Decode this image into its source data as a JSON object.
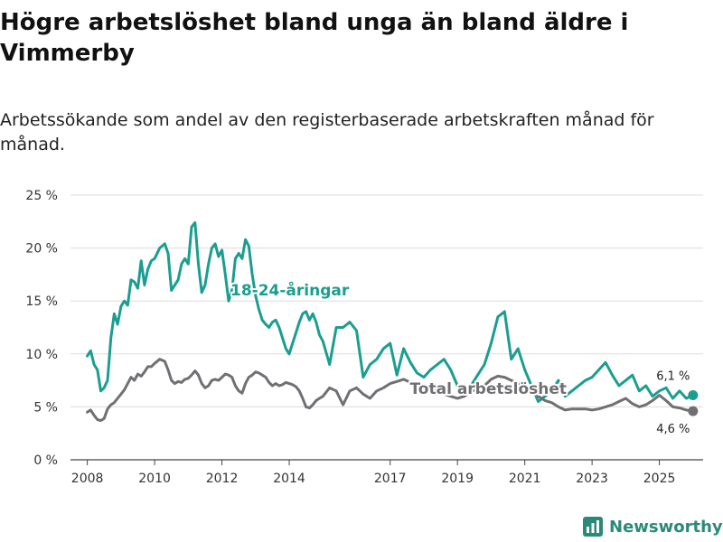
{
  "chart_data": {
    "type": "line",
    "title": "Högre arbetslöshet bland unga än bland äldre i Vimmerby",
    "subtitle": "Arbetssökande som andel av den registerbaserade arbetskraften månad för månad.",
    "ylim": [
      0,
      25
    ],
    "xlim": [
      2007.5,
      2026.3
    ],
    "y_ticks": [
      0,
      5,
      10,
      15,
      20,
      25
    ],
    "y_tick_labels": [
      "0 %",
      "5 %",
      "10 %",
      "15 %",
      "20 %",
      "25 %"
    ],
    "x_ticks": [
      2008,
      2010,
      2012,
      2014,
      2017,
      2019,
      2021,
      2023,
      2025
    ],
    "x_tick_labels": [
      "2008",
      "2010",
      "2012",
      "2014",
      "2017",
      "2019",
      "2021",
      "2023",
      "2025"
    ],
    "grid": "horizontal",
    "series": [
      {
        "name": "18-24-åringar",
        "label": "18-24-åringar",
        "color": "#1a9e8f",
        "end_label": "6,1 %",
        "x": [
          2008.0,
          2008.1,
          2008.2,
          2008.3,
          2008.4,
          2008.5,
          2008.6,
          2008.7,
          2008.8,
          2008.9,
          2009.0,
          2009.1,
          2009.2,
          2009.3,
          2009.4,
          2009.5,
          2009.6,
          2009.7,
          2009.8,
          2009.9,
          2010.0,
          2010.15,
          2010.3,
          2010.4,
          2010.5,
          2010.6,
          2010.7,
          2010.8,
          2010.9,
          2011.0,
          2011.1,
          2011.2,
          2011.3,
          2011.4,
          2011.5,
          2011.6,
          2011.7,
          2011.8,
          2011.9,
          2012.0,
          2012.1,
          2012.2,
          2012.3,
          2012.4,
          2012.5,
          2012.6,
          2012.7,
          2012.8,
          2012.9,
          2013.0,
          2013.1,
          2013.2,
          2013.3,
          2013.4,
          2013.5,
          2013.6,
          2013.7,
          2013.8,
          2013.9,
          2014.0,
          2014.1,
          2014.2,
          2014.3,
          2014.4,
          2014.5,
          2014.6,
          2014.7,
          2014.8,
          2014.9,
          2015.0,
          2015.2,
          2015.4,
          2015.6,
          2015.8,
          2016.0,
          2016.2,
          2016.4,
          2016.6,
          2016.8,
          2017.0,
          2017.2,
          2017.4,
          2017.6,
          2017.8,
          2018.0,
          2018.2,
          2018.4,
          2018.6,
          2018.8,
          2019.0,
          2019.2,
          2019.4,
          2019.6,
          2019.8,
          2020.0,
          2020.2,
          2020.4,
          2020.6,
          2020.8,
          2021.0,
          2021.2,
          2021.4,
          2021.6,
          2021.8,
          2022.0,
          2022.2,
          2022.4,
          2022.6,
          2022.8,
          2023.0,
          2023.2,
          2023.4,
          2023.6,
          2023.8,
          2024.0,
          2024.2,
          2024.4,
          2024.6,
          2024.8,
          2025.0,
          2025.2,
          2025.4,
          2025.6,
          2025.8,
          2026.0
        ],
        "values": [
          9.8,
          10.3,
          9.0,
          8.5,
          6.5,
          6.8,
          7.5,
          11.5,
          13.8,
          12.8,
          14.5,
          15.0,
          14.6,
          17.0,
          16.8,
          16.2,
          18.8,
          16.5,
          18.0,
          18.8,
          19.0,
          20.0,
          20.4,
          19.5,
          16.0,
          16.5,
          17.0,
          18.5,
          19.0,
          18.5,
          22.0,
          22.4,
          18.5,
          15.8,
          16.5,
          18.5,
          20.0,
          20.4,
          19.2,
          19.8,
          17.5,
          15.0,
          16.0,
          19.0,
          19.5,
          19.0,
          20.8,
          20.2,
          17.5,
          15.5,
          14.2,
          13.2,
          12.8,
          12.5,
          13.0,
          13.2,
          12.5,
          11.5,
          10.5,
          10.0,
          11.0,
          12.0,
          13.0,
          13.8,
          14.0,
          13.2,
          13.8,
          13.0,
          11.8,
          11.2,
          9.0,
          12.5,
          12.5,
          13.0,
          12.2,
          7.8,
          9.0,
          9.5,
          10.5,
          11.0,
          8.0,
          10.5,
          9.2,
          8.2,
          7.8,
          8.5,
          9.0,
          9.5,
          8.5,
          7.0,
          6.0,
          7.0,
          8.0,
          9.0,
          11.0,
          13.5,
          14.0,
          9.5,
          10.5,
          8.5,
          7.0,
          5.5,
          6.0,
          6.5,
          7.5,
          6.0,
          6.5,
          7.0,
          7.5,
          7.8,
          8.5,
          9.2,
          8.0,
          7.0,
          7.5,
          8.0,
          6.5,
          7.0,
          6.0,
          6.5,
          6.8,
          5.8,
          6.5,
          5.8,
          6.1
        ]
      },
      {
        "name": "Total arbetslöshet",
        "label": "Total arbetslöshet",
        "color": "#707074",
        "end_label": "4,6 %",
        "x": [
          2008.0,
          2008.1,
          2008.2,
          2008.3,
          2008.4,
          2008.5,
          2008.6,
          2008.7,
          2008.8,
          2008.9,
          2009.0,
          2009.1,
          2009.2,
          2009.3,
          2009.4,
          2009.5,
          2009.6,
          2009.7,
          2009.8,
          2009.9,
          2010.0,
          2010.15,
          2010.3,
          2010.4,
          2010.5,
          2010.6,
          2010.7,
          2010.8,
          2010.9,
          2011.0,
          2011.1,
          2011.2,
          2011.3,
          2011.4,
          2011.5,
          2011.6,
          2011.7,
          2011.8,
          2011.9,
          2012.0,
          2012.1,
          2012.2,
          2012.3,
          2012.4,
          2012.5,
          2012.6,
          2012.7,
          2012.8,
          2012.9,
          2013.0,
          2013.1,
          2013.2,
          2013.3,
          2013.4,
          2013.5,
          2013.6,
          2013.7,
          2013.8,
          2013.9,
          2014.0,
          2014.1,
          2014.2,
          2014.3,
          2014.4,
          2014.5,
          2014.6,
          2014.7,
          2014.8,
          2014.9,
          2015.0,
          2015.2,
          2015.4,
          2015.6,
          2015.8,
          2016.0,
          2016.2,
          2016.4,
          2016.6,
          2016.8,
          2017.0,
          2017.2,
          2017.4,
          2017.6,
          2017.8,
          2018.0,
          2018.2,
          2018.4,
          2018.6,
          2018.8,
          2019.0,
          2019.2,
          2019.4,
          2019.6,
          2019.8,
          2020.0,
          2020.2,
          2020.4,
          2020.6,
          2020.8,
          2021.0,
          2021.2,
          2021.4,
          2021.6,
          2021.8,
          2022.0,
          2022.2,
          2022.4,
          2022.6,
          2022.8,
          2023.0,
          2023.2,
          2023.4,
          2023.6,
          2023.8,
          2024.0,
          2024.2,
          2024.4,
          2024.6,
          2024.8,
          2025.0,
          2025.2,
          2025.4,
          2025.6,
          2025.8,
          2026.0
        ],
        "values": [
          4.5,
          4.7,
          4.2,
          3.8,
          3.7,
          3.9,
          4.8,
          5.2,
          5.4,
          5.8,
          6.2,
          6.6,
          7.2,
          7.8,
          7.5,
          8.1,
          7.9,
          8.3,
          8.8,
          8.8,
          9.1,
          9.5,
          9.3,
          8.5,
          7.5,
          7.2,
          7.4,
          7.3,
          7.6,
          7.7,
          8.0,
          8.4,
          8.0,
          7.2,
          6.8,
          7.0,
          7.5,
          7.6,
          7.5,
          7.8,
          8.1,
          8.0,
          7.8,
          7.0,
          6.5,
          6.3,
          7.2,
          7.8,
          8.0,
          8.3,
          8.2,
          8.0,
          7.8,
          7.3,
          7.0,
          7.2,
          7.0,
          7.1,
          7.3,
          7.2,
          7.1,
          6.9,
          6.5,
          5.8,
          5.0,
          4.9,
          5.2,
          5.6,
          5.8,
          6.0,
          6.8,
          6.5,
          5.2,
          6.5,
          6.8,
          6.2,
          5.8,
          6.5,
          6.8,
          7.2,
          7.4,
          7.6,
          7.3,
          7.2,
          7.0,
          6.8,
          6.5,
          6.2,
          6.0,
          5.8,
          6.0,
          6.4,
          6.8,
          7.0,
          7.6,
          7.9,
          7.8,
          7.5,
          7.2,
          6.8,
          6.5,
          6.0,
          5.6,
          5.4,
          5.0,
          4.7,
          4.8,
          4.8,
          4.8,
          4.7,
          4.8,
          5.0,
          5.2,
          5.5,
          5.8,
          5.3,
          5.0,
          5.2,
          5.6,
          6.1,
          5.6,
          5.0,
          4.9,
          4.7,
          4.6
        ]
      }
    ]
  },
  "brand": {
    "name": "Newsworthy",
    "icon": "newsworthy-logo-icon",
    "color": "#2a8a78"
  }
}
